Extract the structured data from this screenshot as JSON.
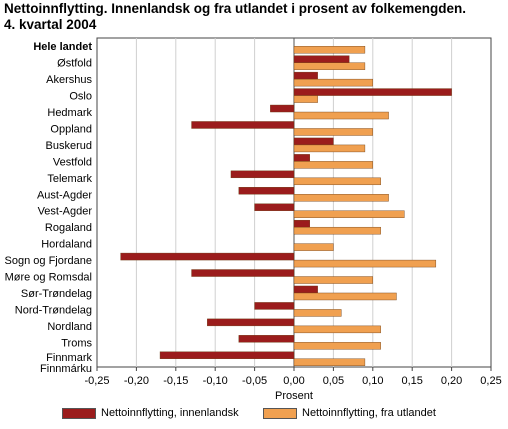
{
  "title_line1": "Nettoinnflytting. Innenlandsk og fra utlandet i prosent av folkemengden.",
  "title_line2": "4. kvartal 2004",
  "chart_data": {
    "type": "bar",
    "orientation": "horizontal",
    "categories": [
      "Hele landet",
      "Østfold",
      "Akershus",
      "Oslo",
      "Hedmark",
      "Oppland",
      "Buskerud",
      "Vestfold",
      "Telemark",
      "Aust-Agder",
      "Vest-Agder",
      "Rogaland",
      "Hordaland",
      "Sogn og Fjordane",
      "Møre og Romsdal",
      "Sør-Trøndelag",
      "Nord-Trøndelag",
      "Nordland",
      "Troms",
      "Finnmark\nFinnmárku"
    ],
    "series": [
      {
        "name": "Nettoinnflytting, innenlandsk",
        "color": "#9b1c1c",
        "values": [
          0.0,
          0.07,
          0.03,
          0.2,
          -0.03,
          -0.13,
          0.05,
          0.02,
          -0.08,
          -0.07,
          -0.05,
          0.02,
          0.0,
          -0.22,
          -0.13,
          0.03,
          -0.05,
          -0.11,
          -0.07,
          -0.17
        ]
      },
      {
        "name": "Nettoinnflytting, fra utlandet",
        "color": "#f0a050",
        "values": [
          0.09,
          0.09,
          0.1,
          0.03,
          0.12,
          0.1,
          0.09,
          0.1,
          0.11,
          0.12,
          0.14,
          0.11,
          0.05,
          0.18,
          0.1,
          0.13,
          0.06,
          0.11,
          0.11,
          0.09
        ]
      }
    ],
    "xlim": [
      -0.25,
      0.25
    ],
    "xticks": [
      "-0,25",
      "-0,20",
      "-0,15",
      "-0,10",
      "-0,05",
      "0,00",
      "0,05",
      "0,10",
      "0,15",
      "0,20",
      "0,25"
    ],
    "xlabel": "Prosent",
    "grid": "vertical",
    "legend_position": "bottom"
  }
}
